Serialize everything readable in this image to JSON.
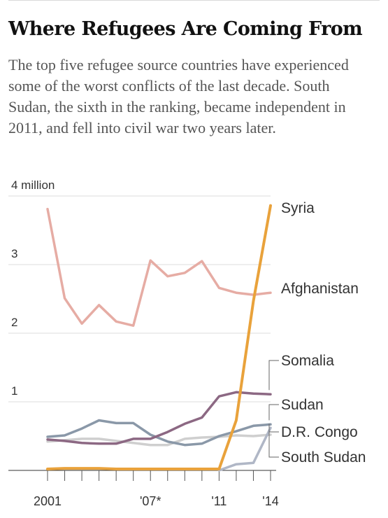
{
  "title": "Where Refugees Are Coming From",
  "subtitle": "The top five refugee source countries have experienced some of the worst conflicts of the last decade. South Sudan, the sixth in the ranking, became independent in 2011, and fell into civil war two years later.",
  "chart_data": {
    "type": "line",
    "x": [
      2001,
      2002,
      2003,
      2004,
      2005,
      2006,
      2007,
      2008,
      2009,
      2010,
      2011,
      2012,
      2013,
      2014
    ],
    "xlim": [
      2001,
      2014
    ],
    "ylim": [
      0,
      4
    ],
    "ytick_values": [
      1,
      2,
      3,
      4
    ],
    "ytick_labels": [
      "1",
      "2",
      "3",
      "4 million"
    ],
    "xtick_values": [
      2001,
      2007,
      2011,
      2014
    ],
    "xtick_labels": [
      "2001",
      "'07*",
      "'11",
      "'14"
    ],
    "grid": true,
    "series": [
      {
        "name": "Afghanistan",
        "color": "#e6aca4",
        "width": 3.5,
        "values": [
          3.81,
          2.51,
          2.14,
          2.41,
          2.17,
          2.11,
          3.06,
          2.83,
          2.88,
          3.05,
          2.66,
          2.59,
          2.56,
          2.59
        ]
      },
      {
        "name": "D.R. Congo",
        "color": "#cfcfcf",
        "width": 3.5,
        "values": [
          0.42,
          0.44,
          0.46,
          0.46,
          0.43,
          0.4,
          0.37,
          0.37,
          0.46,
          0.48,
          0.49,
          0.51,
          0.5,
          0.52
        ]
      },
      {
        "name": "Sudan",
        "color": "#8a98a8",
        "width": 3.5,
        "values": [
          0.49,
          0.51,
          0.61,
          0.73,
          0.69,
          0.69,
          0.52,
          0.42,
          0.37,
          0.39,
          0.5,
          0.57,
          0.65,
          0.67
        ]
      },
      {
        "name": "Somalia",
        "color": "#8c6883",
        "width": 3.5,
        "values": [
          0.45,
          0.43,
          0.4,
          0.39,
          0.39,
          0.46,
          0.46,
          0.56,
          0.68,
          0.77,
          1.08,
          1.14,
          1.12,
          1.11
        ]
      },
      {
        "name": "South Sudan",
        "color": "#b0b7c6",
        "width": 3.5,
        "values": [
          null,
          null,
          null,
          null,
          null,
          null,
          null,
          null,
          null,
          null,
          0.0,
          0.09,
          0.11,
          0.62
        ]
      },
      {
        "name": "Syria",
        "color": "#e9a23b",
        "width": 4,
        "values": [
          0.02,
          0.03,
          0.03,
          0.03,
          0.02,
          0.02,
          0.02,
          0.02,
          0.02,
          0.02,
          0.02,
          0.73,
          2.47,
          3.86
        ]
      }
    ],
    "labels": [
      {
        "text": "Syria",
        "series": "Syria"
      },
      {
        "text": "Afghanistan",
        "series": "Afghanistan"
      },
      {
        "text": "Somalia",
        "series": "Somalia"
      },
      {
        "text": "Sudan",
        "series": "Sudan"
      },
      {
        "text": "D.R. Congo",
        "series": "D.R. Congo"
      },
      {
        "text": "South Sudan",
        "series": "South Sudan"
      }
    ]
  }
}
